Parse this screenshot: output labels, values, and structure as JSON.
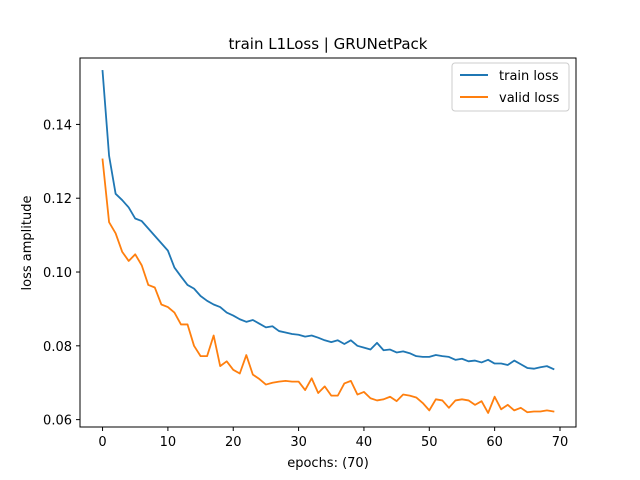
{
  "chart_data": {
    "type": "line",
    "title": "train L1Loss | GRUNetPack",
    "xlabel": "epochs: (70)",
    "ylabel": "loss amplitude",
    "xlim": [
      -3.45,
      72.45
    ],
    "ylim": [
      0.058,
      0.158
    ],
    "xticks": [
      0,
      10,
      20,
      30,
      40,
      50,
      60,
      70
    ],
    "yticks": [
      0.06,
      0.08,
      0.1,
      0.12,
      0.14
    ],
    "ytick_labels": [
      "0.06",
      "0.08",
      "0.10",
      "0.12",
      "0.14"
    ],
    "legend_position": "top-right",
    "grid": false,
    "series": [
      {
        "name": "train loss",
        "color": "#1f77b4",
        "values": [
          0.1545,
          0.1315,
          0.1212,
          0.1195,
          0.1175,
          0.1145,
          0.1138,
          0.1118,
          0.1098,
          0.1078,
          0.1058,
          0.1012,
          0.0988,
          0.0965,
          0.0955,
          0.0935,
          0.0922,
          0.0912,
          0.0905,
          0.089,
          0.0882,
          0.0872,
          0.0865,
          0.087,
          0.086,
          0.085,
          0.0853,
          0.084,
          0.0836,
          0.0832,
          0.083,
          0.0825,
          0.0828,
          0.0822,
          0.0815,
          0.081,
          0.0815,
          0.0805,
          0.0815,
          0.08,
          0.0795,
          0.079,
          0.0808,
          0.0788,
          0.079,
          0.0782,
          0.0785,
          0.078,
          0.0772,
          0.077,
          0.077,
          0.0775,
          0.0772,
          0.077,
          0.0762,
          0.0765,
          0.0758,
          0.076,
          0.0755,
          0.0762,
          0.0752,
          0.0752,
          0.0748,
          0.076,
          0.075,
          0.074,
          0.0738,
          0.0742,
          0.0745,
          0.0737
        ]
      },
      {
        "name": "valid loss",
        "color": "#ff7f0e",
        "values": [
          0.1305,
          0.1135,
          0.1105,
          0.1055,
          0.103,
          0.1048,
          0.1018,
          0.0965,
          0.0958,
          0.0912,
          0.0905,
          0.089,
          0.0858,
          0.0858,
          0.08,
          0.0772,
          0.0772,
          0.0828,
          0.0745,
          0.0758,
          0.0735,
          0.0725,
          0.0775,
          0.0722,
          0.071,
          0.0695,
          0.07,
          0.0703,
          0.0705,
          0.0703,
          0.0703,
          0.068,
          0.0712,
          0.0672,
          0.069,
          0.0665,
          0.0665,
          0.0698,
          0.0705,
          0.0668,
          0.0675,
          0.0658,
          0.0652,
          0.0655,
          0.0662,
          0.065,
          0.0668,
          0.0665,
          0.066,
          0.0645,
          0.0625,
          0.0655,
          0.0652,
          0.0632,
          0.0652,
          0.0655,
          0.0652,
          0.064,
          0.065,
          0.0618,
          0.0662,
          0.0628,
          0.064,
          0.0625,
          0.0632,
          0.062,
          0.0622,
          0.0622,
          0.0625,
          0.0622
        ]
      }
    ]
  }
}
